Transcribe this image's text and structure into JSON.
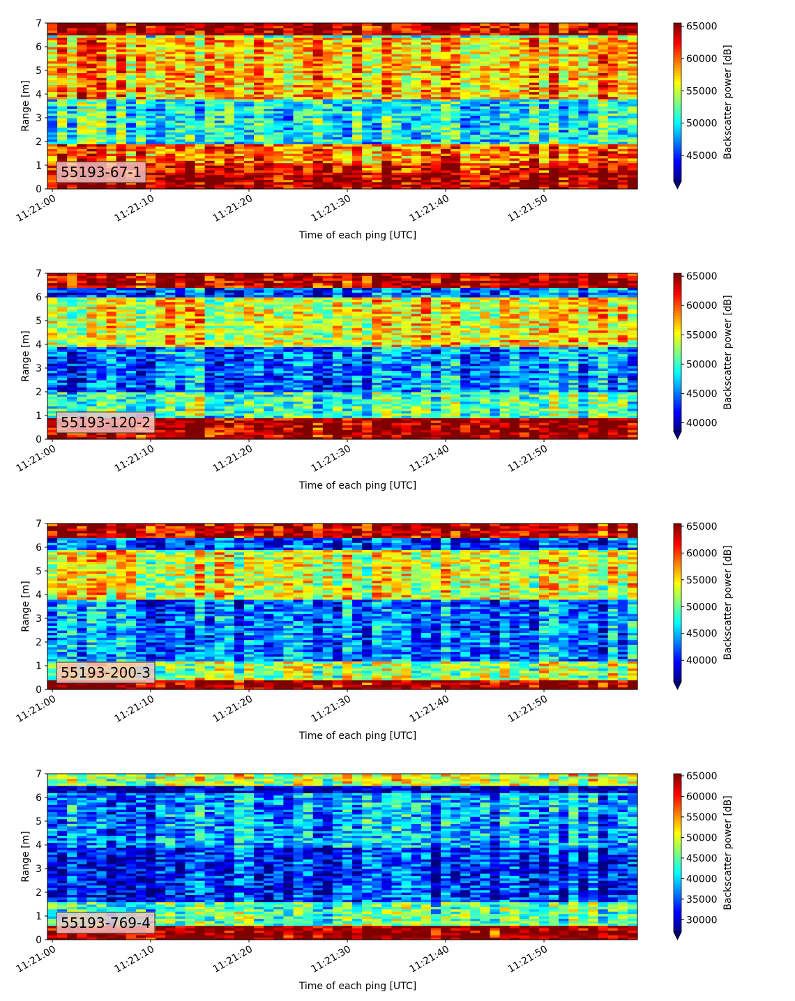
{
  "chart_data": [
    {
      "type": "heatmap",
      "panel_label": "55193-67-1",
      "xlabel": "Time of each ping [UTC]",
      "ylabel": "Range [m]",
      "x_ticks": [
        "11:21:00",
        "11:21:10",
        "11:21:20",
        "11:21:30",
        "11:21:40",
        "11:21:50"
      ],
      "x_tick_seconds": [
        0,
        10,
        20,
        30,
        40,
        50
      ],
      "xlim_seconds": [
        -0.5,
        59.5
      ],
      "y_ticks": [
        0,
        1,
        2,
        3,
        4,
        5,
        6,
        7
      ],
      "ylim": [
        0,
        7
      ],
      "colorbar": {
        "label": "Backscatter power [dB]",
        "colormap": "jet",
        "ticks": [
          45000,
          50000,
          55000,
          60000,
          65000
        ],
        "range": [
          41000,
          65500
        ],
        "extend": "min"
      },
      "profile_levels": [
        {
          "range_from": 0.2,
          "range_to": 0.7,
          "level": 0.97
        },
        {
          "range_from": 0.7,
          "range_to": 1.1,
          "level": 0.9
        },
        {
          "range_from": 1.1,
          "range_to": 1.9,
          "level": 0.78
        },
        {
          "range_from": 1.9,
          "range_to": 3.8,
          "level": 0.4
        },
        {
          "range_from": 3.8,
          "range_to": 6.4,
          "level": 0.7
        },
        {
          "range_from": 6.5,
          "range_to": 7.0,
          "level": 0.97
        }
      ]
    },
    {
      "type": "heatmap",
      "panel_label": "55193-120-2",
      "xlabel": "Time of each ping [UTC]",
      "ylabel": "Range [m]",
      "x_ticks": [
        "11:21:00",
        "11:21:10",
        "11:21:20",
        "11:21:30",
        "11:21:40",
        "11:21:50"
      ],
      "x_tick_seconds": [
        0,
        10,
        20,
        30,
        40,
        50
      ],
      "xlim_seconds": [
        -0.5,
        59.5
      ],
      "y_ticks": [
        0,
        1,
        2,
        3,
        4,
        5,
        6,
        7
      ],
      "ylim": [
        0,
        7
      ],
      "colorbar": {
        "label": "Backscatter power [dB]",
        "colormap": "jet",
        "ticks": [
          40000,
          45000,
          50000,
          55000,
          60000,
          65000
        ],
        "range": [
          38500,
          65500
        ],
        "extend": "min"
      },
      "profile_levels": [
        {
          "range_from": 0.1,
          "range_to": 0.9,
          "level": 0.97
        },
        {
          "range_from": 0.9,
          "range_to": 2.0,
          "level": 0.45
        },
        {
          "range_from": 2.0,
          "range_to": 3.9,
          "level": 0.25
        },
        {
          "range_from": 3.9,
          "range_to": 6.0,
          "level": 0.62
        },
        {
          "range_from": 6.0,
          "range_to": 6.4,
          "level": 0.22
        },
        {
          "range_from": 6.4,
          "range_to": 7.0,
          "level": 0.95
        }
      ]
    },
    {
      "type": "heatmap",
      "panel_label": "55193-200-3",
      "xlabel": "Time of each ping [UTC]",
      "ylabel": "Range [m]",
      "x_ticks": [
        "11:21:00",
        "11:21:10",
        "11:21:20",
        "11:21:30",
        "11:21:40",
        "11:21:50"
      ],
      "x_tick_seconds": [
        0,
        10,
        20,
        30,
        40,
        50
      ],
      "xlim_seconds": [
        -0.5,
        59.5
      ],
      "y_ticks": [
        0,
        1,
        2,
        3,
        4,
        5,
        6,
        7
      ],
      "ylim": [
        0,
        7
      ],
      "colorbar": {
        "label": "Backscatter power [dB]",
        "colormap": "jet",
        "ticks": [
          40000,
          45000,
          50000,
          55000,
          60000,
          65000
        ],
        "range": [
          36000,
          65500
        ],
        "extend": "min"
      },
      "profile_levels": [
        {
          "range_from": 0.1,
          "range_to": 0.4,
          "level": 0.97
        },
        {
          "range_from": 0.4,
          "range_to": 1.2,
          "level": 0.55
        },
        {
          "range_from": 1.2,
          "range_to": 3.8,
          "level": 0.25
        },
        {
          "range_from": 3.8,
          "range_to": 5.9,
          "level": 0.6
        },
        {
          "range_from": 5.9,
          "range_to": 6.4,
          "level": 0.2
        },
        {
          "range_from": 6.4,
          "range_to": 7.0,
          "level": 0.93
        }
      ]
    },
    {
      "type": "heatmap",
      "panel_label": "55193-769-4",
      "xlabel": "Time of each ping [UTC]",
      "ylabel": "Range [m]",
      "x_ticks": [
        "11:21:00",
        "11:21:10",
        "11:21:20",
        "11:21:30",
        "11:21:40",
        "11:21:50"
      ],
      "x_tick_seconds": [
        0,
        10,
        20,
        30,
        40,
        50
      ],
      "xlim_seconds": [
        -0.5,
        59.5
      ],
      "y_ticks": [
        0,
        1,
        2,
        3,
        4,
        5,
        6,
        7
      ],
      "ylim": [
        0,
        7
      ],
      "colorbar": {
        "label": "Backscatter power [dB]",
        "colormap": "jet",
        "ticks": [
          30000,
          35000,
          40000,
          45000,
          50000,
          55000,
          60000,
          65000
        ],
        "range": [
          27000,
          65500
        ],
        "extend": "min"
      },
      "profile_levels": [
        {
          "range_from": 0.1,
          "range_to": 0.6,
          "level": 0.97
        },
        {
          "range_from": 0.6,
          "range_to": 1.6,
          "level": 0.45
        },
        {
          "range_from": 1.6,
          "range_to": 3.9,
          "level": 0.15
        },
        {
          "range_from": 3.9,
          "range_to": 6.2,
          "level": 0.28
        },
        {
          "range_from": 6.2,
          "range_to": 6.5,
          "level": 0.03
        },
        {
          "range_from": 6.5,
          "range_to": 7.0,
          "level": 0.55
        }
      ]
    }
  ]
}
